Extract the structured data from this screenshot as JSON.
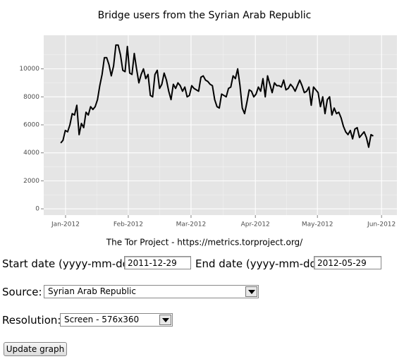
{
  "chart_data": {
    "type": "line",
    "title": "Bridge users from the Syrian Arab Republic",
    "caption": "The Tor Project - https://metrics.torproject.org/",
    "color": "#000000",
    "grid": true,
    "values": [
      4700,
      4900,
      5600,
      5500,
      6000,
      6800,
      6700,
      7400,
      5300,
      6100,
      5800,
      6900,
      6700,
      7300,
      7100,
      7300,
      7800,
      8800,
      9600,
      10800,
      10800,
      10300,
      9500,
      10200,
      11700,
      11700,
      11000,
      9900,
      9800,
      11600,
      9700,
      9600,
      11100,
      10000,
      9000,
      9600,
      10000,
      9300,
      9600,
      8100,
      8000,
      9600,
      9900,
      8600,
      8900,
      9700,
      9200,
      8400,
      7800,
      8900,
      8600,
      9000,
      8800,
      8400,
      8700,
      8000,
      8100,
      8800,
      8600,
      8500,
      8400,
      9400,
      9500,
      9200,
      9100,
      8900,
      8800,
      7800,
      7300,
      7200,
      8200,
      8100,
      8000,
      8600,
      8700,
      9500,
      9300,
      10000,
      8800,
      7200,
      6800,
      7600,
      8500,
      8400,
      8000,
      8200,
      8700,
      8400,
      9300,
      8000,
      9500,
      8900,
      8300,
      9000,
      8800,
      8800,
      8700,
      9200,
      8500,
      8600,
      8900,
      8700,
      8400,
      8800,
      9200,
      8800,
      8300,
      8400,
      8700,
      7400,
      8700,
      8500,
      8300,
      7300,
      8000,
      6800,
      7800,
      8000,
      6700,
      7200,
      6800,
      6900,
      6500,
      5900,
      5500,
      5300,
      5600,
      5000,
      5700,
      5800,
      5100,
      5300,
      5500,
      5100,
      4400,
      5300,
      5200
    ],
    "xlim": [
      -7.4,
      146.3
    ],
    "xticks": [
      {
        "value": 2.1,
        "label": "Jan-2012"
      },
      {
        "value": 29.4,
        "label": "Feb-2012"
      },
      {
        "value": 56.7,
        "label": "Mar-2012"
      },
      {
        "value": 84.7,
        "label": "Apr-2012"
      },
      {
        "value": 111.7,
        "label": "May-2012"
      },
      {
        "value": 139.6,
        "label": "Jun-2012"
      }
    ],
    "ylim": [
      -450,
      12400
    ],
    "yticks": [
      0,
      2000,
      4000,
      6000,
      8000,
      10000
    ]
  },
  "form": {
    "start_label": "Start date (yyyy-mm-dd):",
    "start_value": "2011-12-29",
    "end_label": "End date (yyyy-mm-dd):",
    "end_value": "2012-05-29",
    "source_label": "Source:",
    "source_value": "Syrian Arab Republic",
    "resolution_label": "Resolution:",
    "resolution_value": "Screen - 576x360",
    "button": "Update graph"
  }
}
